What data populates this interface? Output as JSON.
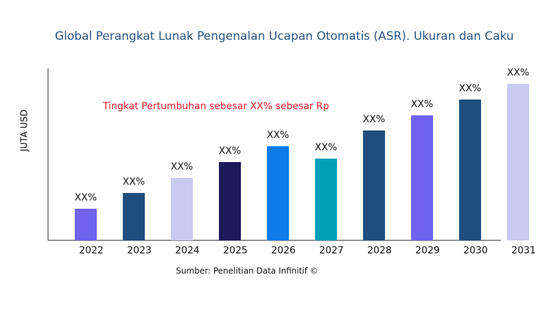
{
  "chart_data": {
    "type": "bar",
    "title": "Global Perangkat Lunak Pengenalan Ucapan Otomatis (ASR). Ukuran dan Caku",
    "y_label": "JUTA USD",
    "annotation": "Tingkat Pertumbuhan sebesar XX% sebesar Rp",
    "source": "Sumber: Penelitian Data Infinitif ©",
    "categories": [
      "2022",
      "2023",
      "2024",
      "2025",
      "2026",
      "2027",
      "2028",
      "2029",
      "2030",
      "2031"
    ],
    "values": [
      46,
      69,
      91,
      114,
      137,
      119,
      160,
      182,
      205,
      228
    ],
    "value_labels": [
      "XX%",
      "XX%",
      "XX%",
      "XX%",
      "XX%",
      "XX%",
      "XX%",
      "XX%",
      "XX%",
      "XX%"
    ],
    "colors": [
      "#6f63f0",
      "#1f4e7e",
      "#c8cbf0",
      "#1e1a5a",
      "#0e7be8",
      "#00a0b8",
      "#1f4e7e",
      "#6f63f0",
      "#1f4e7e",
      "#c8cbf0"
    ],
    "ylim": [
      0,
      250
    ]
  }
}
